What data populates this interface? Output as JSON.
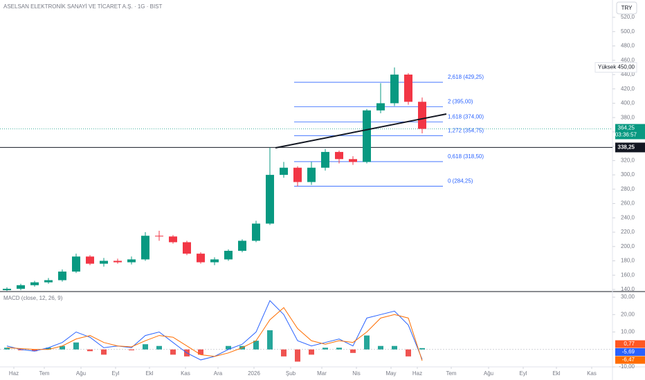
{
  "header": {
    "symbol": "ASELSAN ELEKTRONİK SANAYİ VE TİCARET A.Ş. · 1G · BIST",
    "currency": "TRY"
  },
  "chart_data": [
    {
      "type": "candlestick",
      "x": [
        1,
        3,
        5,
        7,
        9,
        11,
        13,
        15,
        17,
        19,
        21,
        23,
        25,
        27,
        29,
        31,
        33,
        35,
        37,
        39,
        41,
        43,
        45,
        47,
        49,
        51,
        53,
        55,
        57,
        59,
        61
      ],
      "open": [
        139,
        141,
        146,
        150,
        153,
        165,
        186,
        176,
        180,
        178,
        182,
        215,
        214,
        206,
        190,
        178,
        182,
        194,
        208,
        232,
        300,
        310,
        290,
        310,
        332,
        322,
        318,
        390,
        400,
        440,
        402
      ],
      "high": [
        143,
        148,
        152,
        156,
        168,
        190,
        188,
        184,
        183,
        186,
        220,
        222,
        216,
        208,
        192,
        185,
        196,
        210,
        236,
        338,
        318,
        312,
        318,
        336,
        334,
        326,
        392,
        428,
        450,
        442,
        408
      ],
      "low": [
        138,
        139,
        144,
        148,
        151,
        163,
        174,
        172,
        176,
        175,
        180,
        208,
        204,
        188,
        176,
        174,
        180,
        192,
        206,
        230,
        296,
        284,
        286,
        306,
        316,
        314,
        316,
        386,
        396,
        398,
        358
      ],
      "close": [
        141,
        146,
        150,
        153,
        165,
        186,
        176,
        180,
        178,
        182,
        215,
        214,
        206,
        190,
        178,
        182,
        194,
        208,
        232,
        300,
        310,
        290,
        310,
        332,
        322,
        318,
        390,
        400,
        440,
        402,
        364.25
      ],
      "up_color": "#089981",
      "down_color": "#f23645",
      "xlim": [
        0,
        88.5
      ],
      "ylim": [
        137.1,
        544.1
      ],
      "yticks": [
        {
          "value": 140,
          "label": "140,0"
        },
        {
          "value": 160,
          "label": "160,0"
        },
        {
          "value": 180,
          "label": "180,0"
        },
        {
          "value": 200,
          "label": "200,0"
        },
        {
          "value": 220,
          "label": "220,0"
        },
        {
          "value": 240,
          "label": "240,0"
        },
        {
          "value": 260,
          "label": "260,0"
        },
        {
          "value": 280,
          "label": "280,0"
        },
        {
          "value": 300,
          "label": "300,0"
        },
        {
          "value": 320,
          "label": "320,0"
        },
        {
          "value": 340,
          "label": "340,0"
        },
        {
          "value": 360,
          "label": "360,0"
        },
        {
          "value": 380,
          "label": "380,0"
        },
        {
          "value": 400,
          "label": "400,0"
        },
        {
          "value": 420,
          "label": "420,0"
        },
        {
          "value": 440,
          "label": "440,0"
        },
        {
          "value": 460,
          "label": "460,0"
        },
        {
          "value": 480,
          "label": "480,0"
        },
        {
          "value": 500,
          "label": "500,0"
        },
        {
          "value": 520,
          "label": "520,0"
        }
      ],
      "fib_x": [
        42.5,
        64
      ],
      "fib_color": "#2962ff",
      "fib_levels": [
        {
          "value": 429.25,
          "label": "2,618 (429,25)"
        },
        {
          "value": 395,
          "label": "2 (395,00)"
        },
        {
          "value": 374,
          "label": "1,618 (374,00)"
        },
        {
          "value": 354.75,
          "label": "1,272 (354,75)"
        },
        {
          "value": 318.5,
          "label": "0,618 (318,50)"
        },
        {
          "value": 284.25,
          "label": "0 (284,25)"
        }
      ],
      "trend_line": {
        "x": [
          39.8,
          64.5
        ],
        "y": [
          337.7,
          385
        ]
      },
      "horizontal_line": {
        "value": 338.25,
        "label": "338,25"
      },
      "last_price": {
        "value": 364.25,
        "label": "364,25",
        "countdown": "03:36:57"
      },
      "high_marker": {
        "text": "Yüksek",
        "value": 450,
        "label": "450,00"
      }
    },
    {
      "type": "macd",
      "title": "MACD (close, 12, 26, 9)",
      "x": [
        1,
        3,
        5,
        7,
        9,
        11,
        13,
        15,
        17,
        19,
        21,
        23,
        25,
        27,
        29,
        31,
        33,
        35,
        37,
        39,
        41,
        43,
        45,
        47,
        49,
        51,
        53,
        55,
        57,
        59,
        61
      ],
      "series": [
        {
          "name": "MACD",
          "color": "#2962ff",
          "values": [
            2,
            0,
            -1,
            1,
            4,
            10,
            7,
            1,
            2,
            1,
            8,
            10,
            4,
            -2,
            -6,
            -4,
            0,
            3,
            10,
            28,
            20,
            5,
            2,
            4,
            6,
            2,
            18,
            20,
            22,
            14,
            -5.69
          ],
          "last_label": "-5,69"
        },
        {
          "name": "Signal",
          "color": "#ff6d00",
          "values": [
            1,
            0.5,
            0,
            0,
            2,
            6,
            8,
            4,
            2,
            1.5,
            5,
            8,
            7,
            2,
            -3,
            -4,
            -2,
            1,
            5,
            17,
            24,
            12,
            5,
            3,
            5,
            4,
            10,
            18,
            20,
            18,
            -6.47
          ],
          "last_label": "-6,47"
        }
      ],
      "histogram": {
        "values": [
          1,
          -0.5,
          -1,
          1,
          2,
          4,
          -1,
          -3,
          0,
          -0.5,
          3,
          2,
          -3,
          -4,
          -3,
          0,
          2,
          2,
          5,
          11,
          -4,
          -7,
          -3,
          1,
          1,
          -2,
          8,
          2,
          2,
          -4,
          0.77
        ],
        "last_label": "0,77",
        "up_color": "#26a69a",
        "down_color": "#ef5350",
        "label_color": "#ff5722"
      },
      "xlim": [
        0,
        88.5
      ],
      "ylim": [
        -10,
        33.2
      ],
      "yticks": [
        {
          "value": -10,
          "label": "-10,00"
        },
        {
          "value": 10,
          "label": "10,00"
        },
        {
          "value": 20,
          "label": "20,00"
        },
        {
          "value": 30,
          "label": "30,00"
        }
      ],
      "xticks": [
        {
          "value": 2,
          "label": "Haz"
        },
        {
          "value": 6.4,
          "label": "Tem"
        },
        {
          "value": 11.7,
          "label": "Ağu"
        },
        {
          "value": 16.7,
          "label": "Eyl"
        },
        {
          "value": 21.6,
          "label": "Ekl"
        },
        {
          "value": 26.8,
          "label": "Kas"
        },
        {
          "value": 31.5,
          "label": "Ara"
        },
        {
          "value": 36.7,
          "label": "2026"
        },
        {
          "value": 42,
          "label": "Şub"
        },
        {
          "value": 46.5,
          "label": "Mar"
        },
        {
          "value": 51.5,
          "label": "Nis"
        },
        {
          "value": 56.5,
          "label": "May"
        },
        {
          "value": 60.3,
          "label": "Haz"
        },
        {
          "value": 65.2,
          "label": "Tem"
        },
        {
          "value": 70.6,
          "label": "Ağu"
        },
        {
          "value": 75.6,
          "label": "Eyl"
        },
        {
          "value": 80.4,
          "label": "Ekl"
        },
        {
          "value": 85.5,
          "label": "Kas"
        }
      ]
    }
  ]
}
